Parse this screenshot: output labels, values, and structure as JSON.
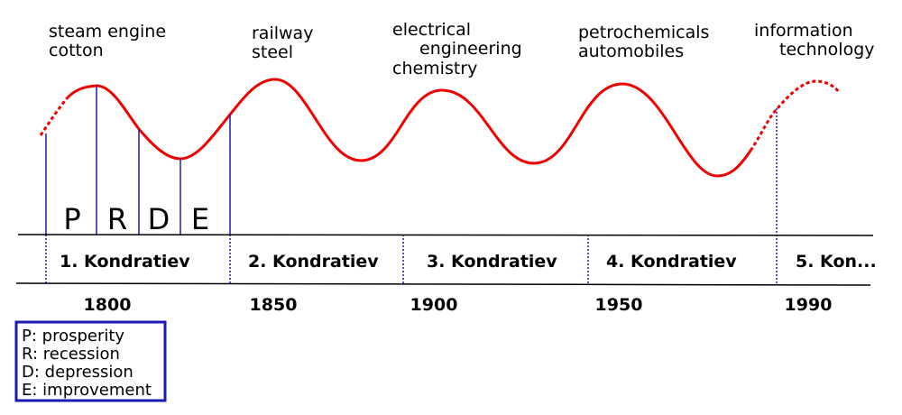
{
  "waves": [
    {
      "innovations": [
        "steam engine",
        "cotton"
      ],
      "cycle": "1. Kondratiev",
      "year": "1800"
    },
    {
      "innovations": [
        "railway",
        "steel"
      ],
      "cycle": "2. Kondratiev",
      "year": "1850"
    },
    {
      "innovations": [
        "electrical",
        "engineering",
        "chemistry"
      ],
      "cycle": "3. Kondratiev",
      "year": "1900"
    },
    {
      "innovations": [
        "petrochemicals",
        "automobiles"
      ],
      "cycle": "4. Kondratiev",
      "year": "1950"
    },
    {
      "innovations": [
        "information",
        "technology"
      ],
      "cycle": "5. Kon...",
      "year": "1990"
    }
  ],
  "phases": [
    "P",
    "R",
    "D",
    "E"
  ],
  "legend": [
    "P: prosperity",
    "R: recession",
    "D: depression",
    "E: improvement"
  ]
}
